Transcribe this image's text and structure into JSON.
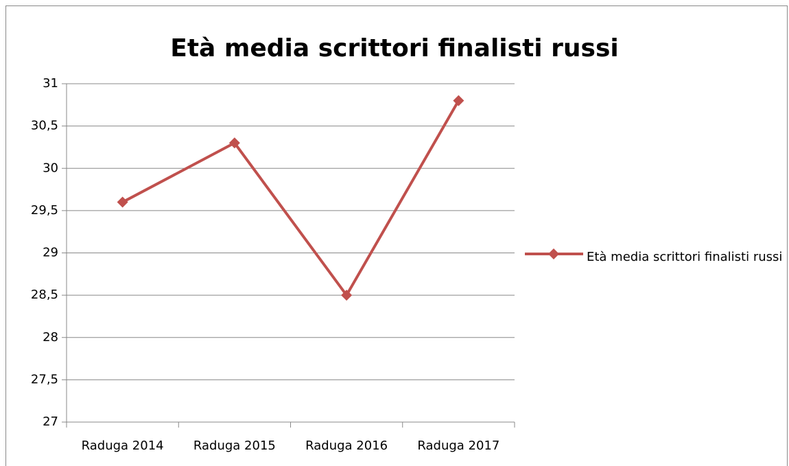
{
  "chart_data": {
    "type": "line",
    "title": "Età media scrittori finalisti russi",
    "categories": [
      "Raduga 2014",
      "Raduga 2015",
      "Raduga 2016",
      "Raduga 2017"
    ],
    "series": [
      {
        "name": "Età media scrittori finalisti russi",
        "color": "#c0504d",
        "values": [
          29.6,
          30.3,
          28.5,
          30.8
        ]
      }
    ],
    "ylim": [
      27,
      31
    ],
    "yticks": [
      27,
      {
        "value": 27.5,
        "label": "27,5"
      },
      28,
      {
        "value": 28.5,
        "label": "28,5"
      },
      29,
      {
        "value": 29.5,
        "label": "29,5"
      },
      30,
      {
        "value": 30.5,
        "label": "30,5"
      },
      31
    ],
    "grid": true,
    "legend": "right"
  }
}
